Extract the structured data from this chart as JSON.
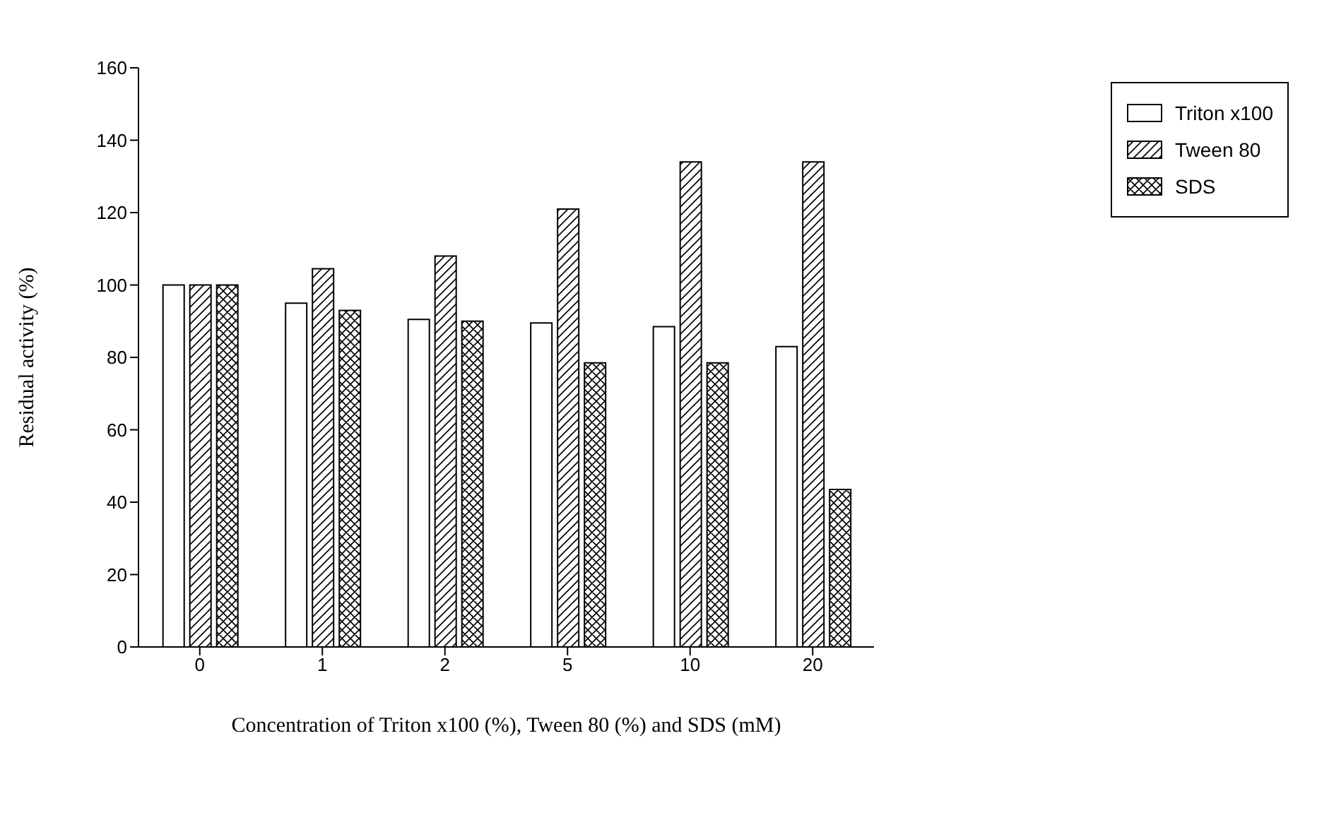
{
  "chart_data": {
    "type": "bar",
    "xlabel": "Concentration of Triton x100 (%), Tween 80 (%) and SDS (mM)",
    "ylabel": "Residual activity (%)",
    "categories": [
      "0",
      "1",
      "2",
      "5",
      "10",
      "20"
    ],
    "series": [
      {
        "name": "Triton x100",
        "color": "#000000",
        "values": [
          100,
          95,
          90.5,
          89.5,
          88.5,
          83
        ]
      },
      {
        "name": "Tween 80",
        "color": "#000000",
        "values": [
          100,
          104.5,
          108,
          121,
          134,
          134
        ]
      },
      {
        "name": "SDS",
        "color": "#000000",
        "values": [
          100,
          93,
          90,
          78.5,
          78.5,
          43.5
        ]
      }
    ],
    "ylim": [
      0,
      160
    ],
    "yticks": [
      0,
      20,
      40,
      60,
      80,
      100,
      120,
      140,
      160
    ],
    "grid": false,
    "legend": "top right"
  }
}
